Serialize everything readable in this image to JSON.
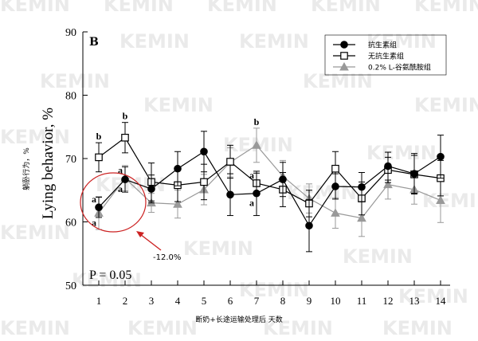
{
  "chart_data": {
    "type": "line",
    "panel_label": "B",
    "ylabel_cn": "躺卧行为，%",
    "ylabel_en": "Lying behavior, %",
    "xlabel": "断奶+长途运输处理后 天数",
    "ylim": [
      50,
      90
    ],
    "yticks": [
      50,
      60,
      70,
      80,
      90
    ],
    "x": [
      1,
      2,
      3,
      4,
      5,
      6,
      7,
      8,
      9,
      10,
      11,
      12,
      13,
      14
    ],
    "p_value_label": "P = 0.05",
    "legend_position": "top-right",
    "series": [
      {
        "name": "抗生素组",
        "marker": "filled-circle",
        "color": "#000000",
        "values": [
          62.3,
          66.7,
          65.2,
          68.4,
          71.1,
          64.3,
          64.5,
          66.7,
          59.4,
          65.6,
          65.5,
          68.8,
          67.6,
          70.3
        ],
        "errors": [
          1.6,
          2.0,
          2.2,
          2.7,
          3.2,
          3.3,
          3.5,
          2.7,
          4.1,
          2.0,
          2.3,
          2.2,
          3.2,
          3.4
        ]
      },
      {
        "name": "无抗生素组",
        "marker": "open-square",
        "color": "#000000",
        "values": [
          70.2,
          73.3,
          66.3,
          65.8,
          66.3,
          69.5,
          66.1,
          65.1,
          62.9,
          68.4,
          63.7,
          68.2,
          67.5,
          66.9
        ],
        "errors": [
          2.3,
          2.4,
          3.0,
          2.6,
          2.8,
          2.6,
          1.6,
          2.7,
          2.1,
          2.7,
          2.6,
          2.0,
          3.0,
          2.8
        ]
      },
      {
        "name": "0.2% L-谷氨酰胺组",
        "marker": "filled-triangle",
        "color": "#999999",
        "values": [
          61.4,
          66.9,
          63.0,
          62.8,
          65.1,
          69.4,
          72.1,
          67.2,
          63.7,
          61.4,
          60.6,
          65.9,
          65.1,
          63.4
        ],
        "errors": [
          2.6,
          2.0,
          1.5,
          2.2,
          2.4,
          2.3,
          2.7,
          2.5,
          2.3,
          2.4,
          2.9,
          2.3,
          2.3,
          3.5
        ]
      }
    ],
    "significance_letters": [
      {
        "day": 1,
        "series": "无抗生素组",
        "text": "b"
      },
      {
        "day": 1,
        "series": "抗生素组",
        "text": "a"
      },
      {
        "day": 1,
        "series": "0.2% L-谷氨酰胺组",
        "text": "a"
      },
      {
        "day": 2,
        "series": "无抗生素组",
        "text": "b"
      },
      {
        "day": 2,
        "series": "抗生素组",
        "text": "a"
      },
      {
        "day": 2,
        "series": "0.2% L-谷氨酰胺组",
        "text": "a"
      },
      {
        "day": 7,
        "series": "0.2% L-谷氨酰胺组",
        "text": "b"
      },
      {
        "day": 7,
        "series": "抗生素组",
        "text": "a"
      },
      {
        "day": 7,
        "series": "无抗生素组",
        "text": "a"
      }
    ],
    "annotation": {
      "text": "-12.0%",
      "color": "#cc2222"
    },
    "watermark": "KEMIN"
  }
}
